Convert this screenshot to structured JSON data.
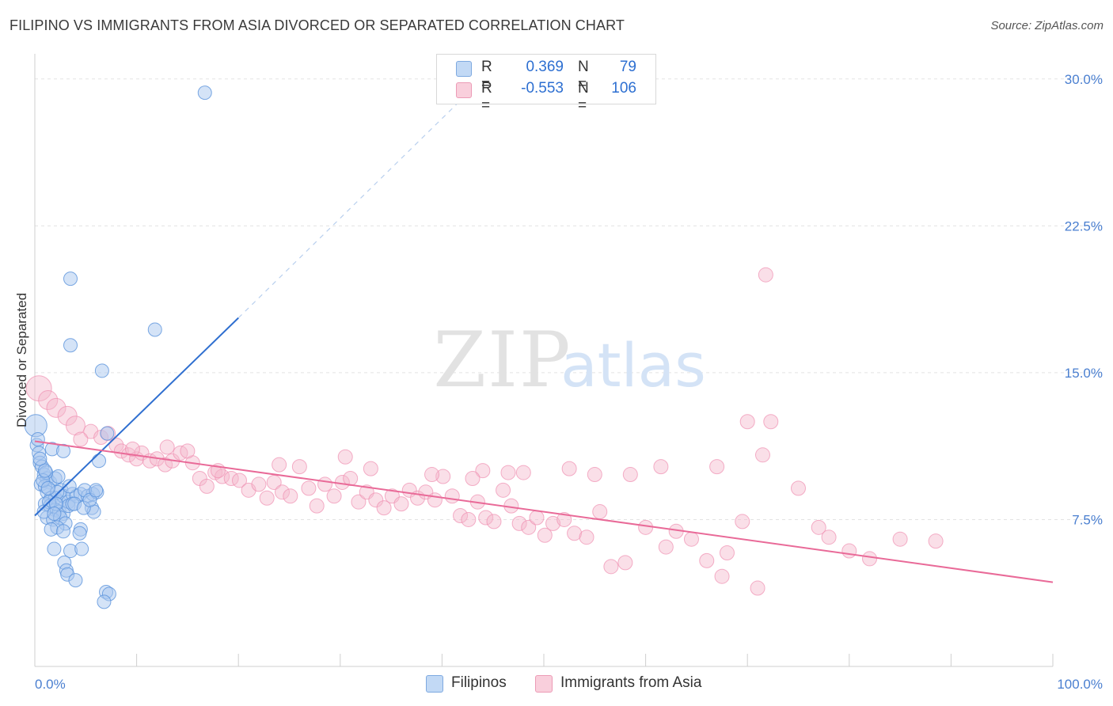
{
  "header": {
    "title": "FILIPINO VS IMMIGRANTS FROM ASIA DIVORCED OR SEPARATED CORRELATION CHART",
    "source": "Source: ZipAtlas.com"
  },
  "watermark": {
    "zip": "ZIP",
    "atlas": "atlas"
  },
  "legend": {
    "rows": [
      {
        "r_label": "R =",
        "r_value": "0.369",
        "n_label": "N =",
        "n_value": "79",
        "color": "#a9c8f0"
      },
      {
        "r_label": "R =",
        "r_value": "-0.553",
        "n_label": "N =",
        "n_value": "106",
        "color": "#f5b8cb"
      }
    ]
  },
  "bottom_legend": [
    {
      "label": "Filipinos",
      "color": "#a9c8f0"
    },
    {
      "label": "Immigrants from Asia",
      "color": "#f5b8cb"
    }
  ],
  "chart_data": {
    "type": "scatter",
    "title": "FILIPINO VS IMMIGRANTS FROM ASIA DIVORCED OR SEPARATED CORRELATION CHART",
    "xlabel": "",
    "ylabel": "Divorced or Separated",
    "xlim": [
      0,
      100
    ],
    "ylim": [
      0,
      30.8
    ],
    "x_tick_labels": [
      "0.0%",
      "100.0%"
    ],
    "y_ticks": [
      7.5,
      15.0,
      22.5,
      30.0
    ],
    "y_tick_labels": [
      "7.5%",
      "15.0%",
      "22.5%",
      "30.0%"
    ],
    "grid": true,
    "colors": {
      "blue": "#5b93dc",
      "blue_line": "#2f6fd0",
      "pink": "#ef8fb0",
      "pink_line": "#e96a98"
    },
    "series": [
      {
        "name": "Filipinos",
        "color": "#a9c8f0",
        "trend": {
          "x": [
            0,
            20
          ],
          "y": [
            7.7,
            17.8
          ],
          "dashed_to": [
            42,
            29.0
          ]
        },
        "points": [
          [
            16.7,
            29.3
          ],
          [
            3.5,
            19.8
          ],
          [
            11.8,
            17.2
          ],
          [
            3.5,
            16.4
          ],
          [
            6.6,
            15.1
          ],
          [
            0.1,
            12.3
          ],
          [
            0.2,
            11.3
          ],
          [
            0.4,
            10.9
          ],
          [
            1.7,
            11.1
          ],
          [
            2.8,
            11.0
          ],
          [
            0.5,
            10.4
          ],
          [
            0.7,
            10.2
          ],
          [
            0.9,
            9.8
          ],
          [
            1.2,
            9.6
          ],
          [
            1.5,
            9.4
          ],
          [
            0.6,
            9.3
          ],
          [
            1.0,
            9.2
          ],
          [
            2.0,
            9.6
          ],
          [
            2.3,
            9.7
          ],
          [
            2.6,
            9.0
          ],
          [
            1.2,
            8.9
          ],
          [
            1.6,
            8.6
          ],
          [
            2.0,
            8.6
          ],
          [
            2.4,
            8.4
          ],
          [
            2.8,
            8.7
          ],
          [
            3.3,
            8.4
          ],
          [
            3.7,
            8.8
          ],
          [
            4.1,
            8.7
          ],
          [
            4.5,
            8.8
          ],
          [
            5.2,
            8.7
          ],
          [
            5.7,
            8.8
          ],
          [
            6.1,
            8.9
          ],
          [
            1.0,
            8.3
          ],
          [
            1.5,
            8.2
          ],
          [
            2.0,
            8.0
          ],
          [
            2.4,
            7.9
          ],
          [
            2.8,
            7.8
          ],
          [
            3.3,
            8.2
          ],
          [
            3.7,
            8.3
          ],
          [
            1.2,
            7.6
          ],
          [
            1.8,
            7.5
          ],
          [
            2.5,
            7.6
          ],
          [
            3.0,
            7.3
          ],
          [
            2.2,
            7.1
          ],
          [
            1.6,
            7.0
          ],
          [
            2.8,
            6.9
          ],
          [
            4.5,
            7.0
          ],
          [
            4.4,
            6.8
          ],
          [
            5.6,
            8.1
          ],
          [
            5.8,
            7.9
          ],
          [
            1.9,
            6.0
          ],
          [
            3.5,
            5.9
          ],
          [
            4.6,
            6.0
          ],
          [
            2.9,
            5.3
          ],
          [
            3.1,
            4.9
          ],
          [
            3.2,
            4.7
          ],
          [
            4.0,
            4.4
          ],
          [
            7.0,
            3.8
          ],
          [
            7.3,
            3.7
          ],
          [
            6.8,
            3.3
          ],
          [
            0.3,
            11.6
          ],
          [
            0.5,
            10.6
          ],
          [
            1.1,
            9.9
          ],
          [
            0.8,
            9.5
          ],
          [
            1.4,
            8.4
          ],
          [
            2.2,
            8.9
          ],
          [
            3.4,
            9.2
          ],
          [
            4.9,
            9.0
          ],
          [
            6.3,
            10.5
          ],
          [
            7.1,
            11.9
          ],
          [
            1.0,
            10.0
          ],
          [
            0.9,
            7.9
          ],
          [
            2.1,
            8.3
          ],
          [
            1.9,
            7.8
          ],
          [
            3.9,
            8.3
          ],
          [
            4.8,
            8.1
          ],
          [
            5.4,
            8.5
          ],
          [
            6.0,
            9.0
          ],
          [
            1.3,
            9.1
          ]
        ]
      },
      {
        "name": "Immigrants from Asia",
        "color": "#f5b8cb",
        "trend": {
          "x": [
            0,
            100
          ],
          "y": [
            11.5,
            4.3
          ]
        },
        "points": [
          [
            0.4,
            14.2
          ],
          [
            1.3,
            13.6
          ],
          [
            2.1,
            13.2
          ],
          [
            3.2,
            12.8
          ],
          [
            4.0,
            12.3
          ],
          [
            5.5,
            12.0
          ],
          [
            6.5,
            11.7
          ],
          [
            7.2,
            11.9
          ],
          [
            8.0,
            11.3
          ],
          [
            8.5,
            11.0
          ],
          [
            9.2,
            10.8
          ],
          [
            10.0,
            10.6
          ],
          [
            10.5,
            10.9
          ],
          [
            11.3,
            10.5
          ],
          [
            12.0,
            10.6
          ],
          [
            12.8,
            10.3
          ],
          [
            13.5,
            10.5
          ],
          [
            14.3,
            10.9
          ],
          [
            15.5,
            10.4
          ],
          [
            16.2,
            9.6
          ],
          [
            16.9,
            9.2
          ],
          [
            17.7,
            9.9
          ],
          [
            18.4,
            9.7
          ],
          [
            19.3,
            9.6
          ],
          [
            20.1,
            9.5
          ],
          [
            21.0,
            9.0
          ],
          [
            22.0,
            9.3
          ],
          [
            22.8,
            8.6
          ],
          [
            23.5,
            9.4
          ],
          [
            24.3,
            8.9
          ],
          [
            25.1,
            8.7
          ],
          [
            26.0,
            10.2
          ],
          [
            26.9,
            9.1
          ],
          [
            27.7,
            8.2
          ],
          [
            28.5,
            9.3
          ],
          [
            29.4,
            8.7
          ],
          [
            30.2,
            9.4
          ],
          [
            31.0,
            9.6
          ],
          [
            31.8,
            8.4
          ],
          [
            32.6,
            8.9
          ],
          [
            33.5,
            8.5
          ],
          [
            34.3,
            8.1
          ],
          [
            35.1,
            8.7
          ],
          [
            36.0,
            8.3
          ],
          [
            36.8,
            9.0
          ],
          [
            37.6,
            8.6
          ],
          [
            38.4,
            8.9
          ],
          [
            39.3,
            8.5
          ],
          [
            40.1,
            9.7
          ],
          [
            41.0,
            8.7
          ],
          [
            41.8,
            7.7
          ],
          [
            42.6,
            7.5
          ],
          [
            43.5,
            8.4
          ],
          [
            44.3,
            7.6
          ],
          [
            45.1,
            7.4
          ],
          [
            46.0,
            9.0
          ],
          [
            46.8,
            8.2
          ],
          [
            47.6,
            7.3
          ],
          [
            48.5,
            7.1
          ],
          [
            49.3,
            7.6
          ],
          [
            50.1,
            6.7
          ],
          [
            50.9,
            7.3
          ],
          [
            52.0,
            7.5
          ],
          [
            53.0,
            6.8
          ],
          [
            54.2,
            6.6
          ],
          [
            55.5,
            7.9
          ],
          [
            56.6,
            5.1
          ],
          [
            58.0,
            5.3
          ],
          [
            60.0,
            7.1
          ],
          [
            62.0,
            6.1
          ],
          [
            63.0,
            6.9
          ],
          [
            64.5,
            6.5
          ],
          [
            66.0,
            5.4
          ],
          [
            68.0,
            5.8
          ],
          [
            70.0,
            12.5
          ],
          [
            72.3,
            12.5
          ],
          [
            71.5,
            10.8
          ],
          [
            75.0,
            9.1
          ],
          [
            67.0,
            10.2
          ],
          [
            69.5,
            7.4
          ],
          [
            71.0,
            4.0
          ],
          [
            67.5,
            4.6
          ],
          [
            77.0,
            7.1
          ],
          [
            78.0,
            6.6
          ],
          [
            80.0,
            5.9
          ],
          [
            82.0,
            5.5
          ],
          [
            85.0,
            6.5
          ],
          [
            88.5,
            6.4
          ],
          [
            71.8,
            20.0
          ],
          [
            30.5,
            10.7
          ],
          [
            33.0,
            10.1
          ],
          [
            39.0,
            9.8
          ],
          [
            44.0,
            10.0
          ],
          [
            52.5,
            10.1
          ],
          [
            55.0,
            9.8
          ],
          [
            46.5,
            9.9
          ],
          [
            43.0,
            9.6
          ],
          [
            48.0,
            9.9
          ],
          [
            58.5,
            9.8
          ],
          [
            61.5,
            10.2
          ],
          [
            13.0,
            11.2
          ],
          [
            15.0,
            11.0
          ],
          [
            9.6,
            11.1
          ],
          [
            18.0,
            10.0
          ],
          [
            24.0,
            10.3
          ],
          [
            4.5,
            11.6
          ]
        ]
      }
    ]
  }
}
